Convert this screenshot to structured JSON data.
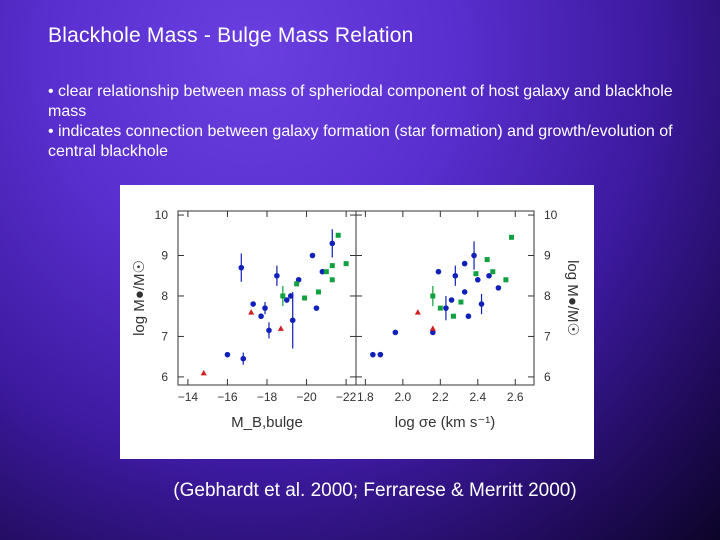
{
  "slide": {
    "title": "Blackhole Mass - Bulge Mass Relation",
    "bullets": [
      "• clear relationship between mass of spheriodal component of host galaxy and blackhole mass",
      "• indicates connection between galaxy formation (star formation) and growth/evolution of central blackhole"
    ],
    "caption": "(Gebhardt et al. 2000; Ferrarese & Merritt 2000)"
  },
  "colors": {
    "blue": "#1020b8",
    "green": "#10a040",
    "red": "#d02020",
    "axis": "#333333"
  },
  "chart_data": [
    {
      "type": "scatter",
      "title": "",
      "xlabel": "M_B,bulge",
      "ylabel": "log M●/M☉",
      "xlim": [
        -13.5,
        -22.5
      ],
      "ylim": [
        5.8,
        10.1
      ],
      "xticks": [
        "−14",
        "−16",
        "−18",
        "−20",
        "−22"
      ],
      "xtick_values": [
        -14,
        -16,
        -18,
        -20,
        -22
      ],
      "yticks": [
        "6",
        "7",
        "8",
        "9",
        "10"
      ],
      "ytick_values": [
        6,
        7,
        8,
        9,
        10
      ],
      "series": [
        {
          "name": "blue",
          "color": "blue",
          "points": [
            [
              -16.7,
              8.7,
              0.35
            ],
            [
              -16.0,
              6.55,
              0
            ],
            [
              -16.8,
              6.45,
              0.15
            ],
            [
              -17.3,
              7.8,
              0
            ],
            [
              -17.7,
              7.5,
              0
            ],
            [
              -17.9,
              7.7,
              0.15
            ],
            [
              -18.1,
              7.15,
              0.2
            ],
            [
              -18.5,
              8.5,
              0.25
            ],
            [
              -19.0,
              7.9,
              0
            ],
            [
              -19.2,
              8.0,
              0
            ],
            [
              -19.6,
              8.4,
              0
            ],
            [
              -20.3,
              9.0,
              0
            ],
            [
              -20.8,
              8.6,
              0
            ],
            [
              -21.3,
              9.3,
              0.35
            ],
            [
              -20.5,
              7.7,
              0
            ],
            [
              -19.3,
              7.4,
              0.7
            ]
          ]
        },
        {
          "name": "green",
          "color": "green",
          "points": [
            [
              -18.8,
              8.0,
              0.25
            ],
            [
              -19.5,
              8.3,
              0
            ],
            [
              -20.6,
              8.1,
              0
            ],
            [
              -21.0,
              8.6,
              0
            ],
            [
              -21.3,
              8.4,
              0
            ],
            [
              -21.6,
              9.5,
              0
            ],
            [
              -22.0,
              8.8,
              0
            ],
            [
              -21.3,
              8.75,
              0
            ],
            [
              -19.9,
              7.95,
              0
            ]
          ]
        },
        {
          "name": "red",
          "color": "red",
          "points": [
            [
              -14.8,
              6.1,
              0
            ],
            [
              -17.2,
              7.6,
              0
            ],
            [
              -18.7,
              7.2,
              0
            ]
          ]
        }
      ]
    },
    {
      "type": "scatter",
      "title": "",
      "xlabel": "log σe (km s⁻¹)",
      "ylabel": "log M●/M☉",
      "xlim": [
        1.75,
        2.7
      ],
      "ylim": [
        5.8,
        10.1
      ],
      "xticks": [
        "1.8",
        "2.0",
        "2.2",
        "2.4",
        "2.6"
      ],
      "xtick_values": [
        1.8,
        2.0,
        2.2,
        2.4,
        2.6
      ],
      "yticks": [
        "6",
        "7",
        "8",
        "9",
        "10"
      ],
      "ytick_values": [
        6,
        7,
        8,
        9,
        10
      ],
      "series": [
        {
          "name": "blue",
          "color": "blue",
          "points": [
            [
              1.84,
              6.55,
              0
            ],
            [
              1.88,
              6.55,
              0
            ],
            [
              1.96,
              7.1,
              0
            ],
            [
              2.16,
              7.1,
              0
            ],
            [
              2.19,
              8.6,
              0
            ],
            [
              2.23,
              7.7,
              0.3
            ],
            [
              2.26,
              7.9,
              0
            ],
            [
              2.28,
              8.5,
              0.25
            ],
            [
              2.33,
              8.1,
              0
            ],
            [
              2.35,
              7.5,
              0
            ],
            [
              2.38,
              9.0,
              0.35
            ],
            [
              2.4,
              8.4,
              0
            ],
            [
              2.42,
              7.8,
              0.25
            ],
            [
              2.46,
              8.5,
              0
            ],
            [
              2.51,
              8.2,
              0
            ],
            [
              2.33,
              8.8,
              0
            ]
          ]
        },
        {
          "name": "green",
          "color": "green",
          "points": [
            [
              2.16,
              8.0,
              0.25
            ],
            [
              2.2,
              7.7,
              0
            ],
            [
              2.27,
              7.5,
              0
            ],
            [
              2.31,
              7.85,
              0
            ],
            [
              2.39,
              8.55,
              0
            ],
            [
              2.45,
              8.9,
              0
            ],
            [
              2.48,
              8.6,
              0
            ],
            [
              2.55,
              8.4,
              0
            ],
            [
              2.58,
              9.45,
              0
            ]
          ]
        },
        {
          "name": "red",
          "color": "red",
          "points": [
            [
              2.08,
              7.6,
              0
            ],
            [
              2.16,
              7.2,
              0
            ]
          ]
        }
      ]
    }
  ]
}
